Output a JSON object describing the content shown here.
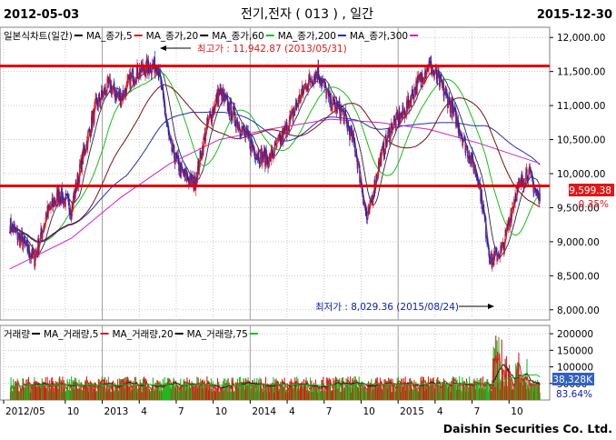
{
  "header": {
    "start_date": "2012-05-03",
    "title": "전기,전자 ( 013 ) , 일간",
    "end_date": "2015-12-30"
  },
  "price_legend": [
    {
      "label": "일본식차트(일간)",
      "color": "#000000"
    },
    {
      "label": "MA_종가,5",
      "color": "#d42020"
    },
    {
      "label": "MA_종가,20",
      "color": "#000000"
    },
    {
      "label": "MA_종가,60",
      "color": "#16c016"
    },
    {
      "label": "MA_종가,200",
      "color": "#2030b0"
    },
    {
      "label": "MA_종가,300",
      "color": "#d020c8"
    }
  ],
  "volume_legend": [
    {
      "label": "거래량",
      "color": "#000000"
    },
    {
      "label": "MA_거래량,5",
      "color": "#d42020"
    },
    {
      "label": "MA_거래량,20",
      "color": "#000000"
    },
    {
      "label": "MA_거래량,75",
      "color": "#16c016"
    }
  ],
  "annotations": {
    "high_text": "최고가 : 11,942.87 (2013/05/31)",
    "low_text": "최저가 : 8,029.36 (2015/08/24)",
    "last_price": "9,599.38",
    "change_pct": "0.35%",
    "last_volume": "38,328K",
    "volume_pct": "83.64%"
  },
  "footer": {
    "brand": "Daishin Securities Co. Ltd."
  },
  "colors": {
    "up": "#e01818",
    "down": "#1028c8",
    "support_line": "#e00000",
    "volume_up": "#e01818",
    "volume_down": "#20b820",
    "grid": "#c8c8c8",
    "price_tag": "#e01818"
  },
  "chart_data": [
    {
      "type": "candlestick",
      "yaxis_ticks": [
        12000,
        11500,
        11000,
        10500,
        10000,
        9500,
        9000,
        8500,
        8000
      ],
      "ylim": [
        7850,
        12150
      ],
      "horizontal_lines": [
        11580,
        9820
      ],
      "x_ticks": [
        "2012/05",
        "10",
        "2013",
        "4",
        "7",
        "10",
        "2014",
        "4",
        "7",
        "10",
        "2015",
        "4",
        "7",
        "10"
      ],
      "close_path": [
        [
          "2012-05",
          9250
        ],
        [
          "2012-06",
          9000
        ],
        [
          "2012-07",
          8750
        ],
        [
          "2012-08",
          9400
        ],
        [
          "2012-09",
          9700
        ],
        [
          "2012-10",
          9500
        ],
        [
          "2012-11",
          10300
        ],
        [
          "2012-12",
          11000
        ],
        [
          "2013-01",
          11300
        ],
        [
          "2013-02",
          11100
        ],
        [
          "2013-03",
          11450
        ],
        [
          "2013-04",
          11550
        ],
        [
          "2013-05",
          11600
        ],
        [
          "2013-06",
          10400
        ],
        [
          "2013-07",
          10000
        ],
        [
          "2013-08",
          9850
        ],
        [
          "2013-09",
          10700
        ],
        [
          "2013-10",
          11200
        ],
        [
          "2013-11",
          10900
        ],
        [
          "2013-12",
          10600
        ],
        [
          "2014-01",
          10300
        ],
        [
          "2014-02",
          10200
        ],
        [
          "2014-03",
          10500
        ],
        [
          "2014-04",
          10900
        ],
        [
          "2014-05",
          11300
        ],
        [
          "2014-06",
          11500
        ],
        [
          "2014-07",
          11050
        ],
        [
          "2014-08",
          10900
        ],
        [
          "2014-09",
          10400
        ],
        [
          "2014-10",
          9300
        ],
        [
          "2014-11",
          10200
        ],
        [
          "2014-12",
          10700
        ],
        [
          "2015-01",
          10900
        ],
        [
          "2015-02",
          11300
        ],
        [
          "2015-03",
          11600
        ],
        [
          "2015-04",
          11300
        ],
        [
          "2015-05",
          10900
        ],
        [
          "2015-06",
          10400
        ],
        [
          "2015-07",
          9950
        ],
        [
          "2015-08",
          8700
        ],
        [
          "2015-09",
          8900
        ],
        [
          "2015-10",
          9700
        ],
        [
          "2015-11",
          10050
        ],
        [
          "2015-12",
          9600
        ]
      ],
      "ma300": [
        [
          "2012-05",
          8600
        ],
        [
          "2012-10",
          9050
        ],
        [
          "2013-02",
          9650
        ],
        [
          "2013-06",
          10150
        ],
        [
          "2013-10",
          10500
        ],
        [
          "2014-02",
          10650
        ],
        [
          "2014-07",
          10800
        ],
        [
          "2014-11",
          10750
        ],
        [
          "2015-03",
          10650
        ],
        [
          "2015-07",
          10450
        ],
        [
          "2015-12",
          10150
        ]
      ]
    },
    {
      "type": "bar",
      "name": "거래량",
      "yaxis_ticks": [
        200000,
        150000,
        100000,
        50000
      ],
      "ylim": [
        0,
        225000
      ],
      "base_volume": 55000,
      "spikes": [
        [
          "2015-08",
          200000
        ],
        [
          "2015-09",
          180000
        ],
        [
          "2015-10",
          150000
        ],
        [
          "2015-12",
          120000
        ]
      ]
    }
  ]
}
